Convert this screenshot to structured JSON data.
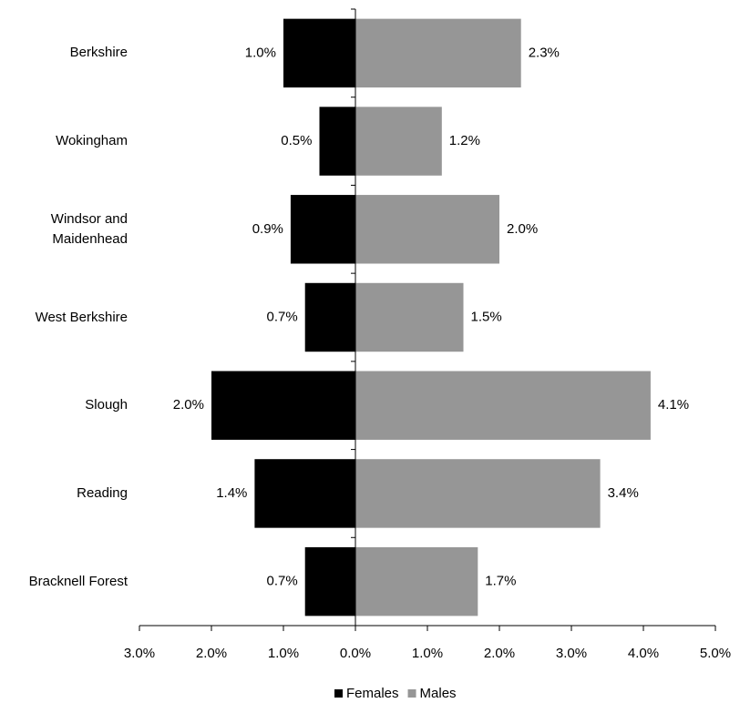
{
  "chart_data": {
    "type": "butterfly-bar",
    "categories": [
      "Berkshire",
      "Wokingham",
      "Windsor and Maidenhead",
      "West Berkshire",
      "Slough",
      "Reading",
      "Bracknell Forest"
    ],
    "series": [
      {
        "name": "Females",
        "color": "#000000",
        "values": [
          -1.0,
          -0.5,
          -0.9,
          -0.7,
          -2.0,
          -1.4,
          -0.7
        ],
        "value_labels": [
          "1.0%",
          "0.5%",
          "0.9%",
          "0.7%",
          "2.0%",
          "1.4%",
          "0.7%"
        ]
      },
      {
        "name": "Males",
        "color": "#969696",
        "values": [
          2.3,
          1.2,
          2.0,
          1.5,
          4.1,
          3.4,
          1.7
        ],
        "value_labels": [
          "2.3%",
          "1.2%",
          "2.0%",
          "1.5%",
          "4.1%",
          "3.4%",
          "1.7%"
        ]
      }
    ],
    "xlim": [
      -3,
      5
    ],
    "xticks": [
      {
        "value": -3,
        "label": "3.0%"
      },
      {
        "value": -2,
        "label": "2.0%"
      },
      {
        "value": -1,
        "label": "1.0%"
      },
      {
        "value": 0,
        "label": "0.0%"
      },
      {
        "value": 1,
        "label": "1.0%"
      },
      {
        "value": 2,
        "label": "2.0%"
      },
      {
        "value": 3,
        "label": "3.0%"
      },
      {
        "value": 4,
        "label": "4.0%"
      },
      {
        "value": 5,
        "label": "5.0%"
      }
    ],
    "legend": "bottom"
  }
}
